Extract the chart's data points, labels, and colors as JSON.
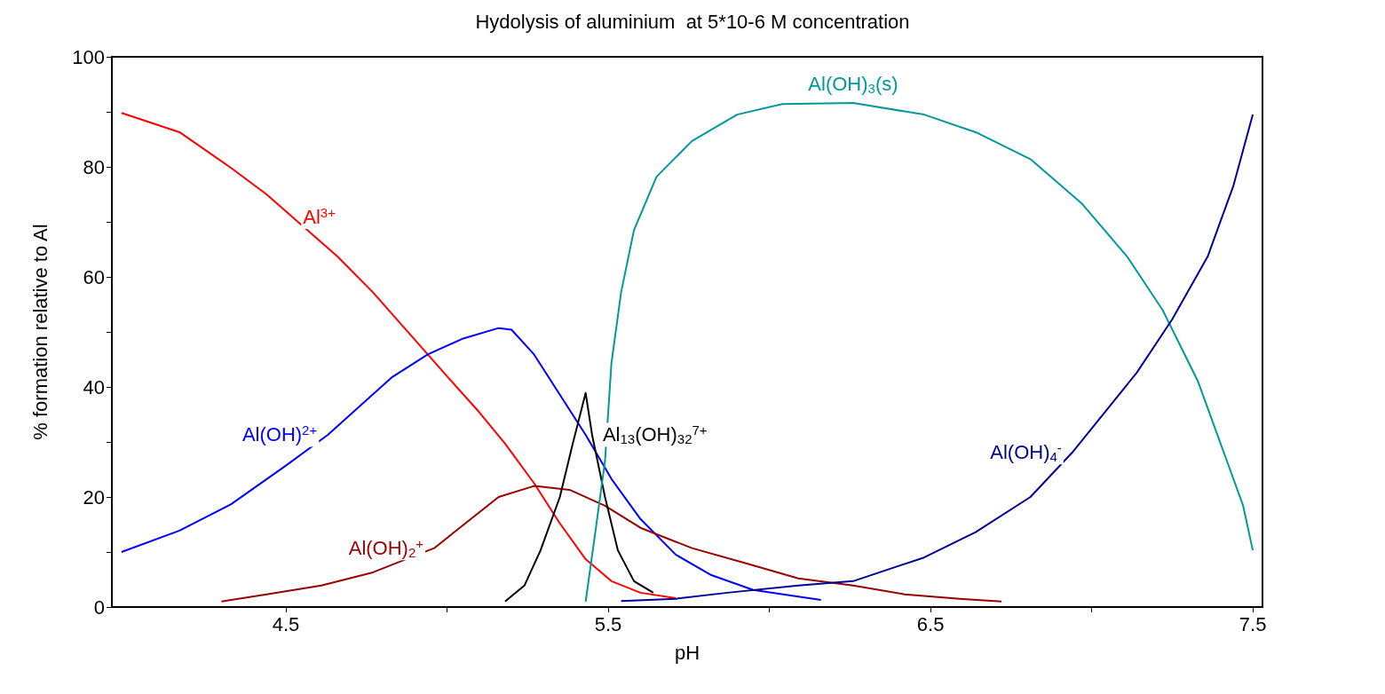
{
  "chart_data": {
    "type": "line",
    "title": "Hydolysis of aluminium  at 5*10-6 M concentration",
    "xlabel": "pH",
    "ylabel": "% formation relative to Al",
    "xlim": [
      3.96,
      7.53
    ],
    "xticks": [
      4.5,
      {
        "value": 5,
        "label": null
      },
      5.5,
      {
        "value": 6,
        "label": null
      },
      6.5,
      {
        "value": 7,
        "label": null
      },
      7.5
    ],
    "ylim": [
      0,
      100
    ],
    "yticks": [
      0,
      {
        "value": 10,
        "label": null
      },
      20,
      {
        "value": 30,
        "label": null
      },
      40,
      {
        "value": 50,
        "label": null
      },
      60,
      {
        "value": 70,
        "label": null
      },
      80,
      {
        "value": 90,
        "label": null
      },
      100
    ],
    "grid": false,
    "marker": "none",
    "line_style": "solid",
    "series": [
      {
        "color": "#ff0000",
        "x": [
          3.99,
          4.17,
          4.33,
          4.44,
          4.52,
          4.66,
          4.77,
          4.88,
          4.99,
          5.1,
          5.18,
          5.27,
          5.35,
          5.43,
          5.51,
          5.6,
          5.71
        ],
        "values": [
          89.8,
          86.3,
          79.8,
          75,
          70.9,
          63.7,
          57.2,
          49.9,
          42.6,
          35.4,
          29.7,
          22.5,
          15.2,
          8.7,
          4.7,
          2.6,
          1.6
        ]
      },
      {
        "color": "#0000ff",
        "x": [
          3.99,
          4.17,
          4.33,
          4.5,
          4.63,
          4.83,
          4.94,
          5.05,
          5.16,
          5.2,
          5.27,
          5.35,
          5.43,
          5.51,
          5.6,
          5.71,
          5.82,
          5.95,
          6.09,
          6.16
        ],
        "values": [
          10,
          13.9,
          18.7,
          25.7,
          31.3,
          41.8,
          45.9,
          48.8,
          50.7,
          50.4,
          45.9,
          38.6,
          31.3,
          23.3,
          16,
          9.5,
          5.8,
          3.1,
          1.9,
          1.3
        ]
      },
      {
        "color": "#990000",
        "x": [
          4.3,
          4.44,
          4.61,
          4.77,
          4.96,
          5.16,
          5.27,
          5.38,
          5.49,
          5.6,
          5.76,
          5.93,
          6.09,
          6.26,
          6.42,
          6.59,
          6.72
        ],
        "values": [
          1,
          2.3,
          3.9,
          6.3,
          10.7,
          20,
          22,
          21.3,
          18.4,
          14.4,
          10.7,
          7.9,
          5.2,
          3.9,
          2.3,
          1.5,
          1
        ]
      },
      {
        "color": "#000000",
        "x": [
          5.18,
          5.24,
          5.29,
          5.35,
          5.39,
          5.43,
          5.45,
          5.49,
          5.53,
          5.58,
          5.64
        ],
        "values": [
          1,
          3.9,
          10.3,
          20,
          29.7,
          38.9,
          31.3,
          20,
          10.3,
          4.7,
          2.6
        ]
      },
      {
        "color": "#009999",
        "x": [
          5.43,
          5.46,
          5.49,
          5.51,
          5.54,
          5.58,
          5.65,
          5.76,
          5.9,
          6.04,
          6.26,
          6.48,
          6.64,
          6.81,
          6.97,
          7.11,
          7.22,
          7.33,
          7.41,
          7.47,
          7.5
        ],
        "values": [
          1,
          13.6,
          26.5,
          44.3,
          57.2,
          68.5,
          78.2,
          84.7,
          89.5,
          91.4,
          91.6,
          89.5,
          86.3,
          81.4,
          73.3,
          63.7,
          54,
          41,
          28.1,
          18.4,
          10.3
        ]
      },
      {
        "color": "#000099",
        "x": [
          5.54,
          5.71,
          5.87,
          6.09,
          6.26,
          6.48,
          6.64,
          6.81,
          6.94,
          7.14,
          7.25,
          7.36,
          7.44,
          7.5
        ],
        "values": [
          1.1,
          1.5,
          2.6,
          3.9,
          4.7,
          9,
          13.6,
          20,
          28.1,
          42.6,
          52.3,
          63.7,
          76.6,
          89.5
        ]
      }
    ],
    "annotations": [
      {
        "text": "Al$^{3+}$",
        "x": 4.52,
        "y": 70.9
      },
      {
        "text": "Al(OH)$^{2+}$",
        "x": 4.63,
        "y": 31.3
      },
      {
        "text": "Al(OH)$_{2}$$^{+}$",
        "x": 4.96,
        "y": 10.7
      },
      {
        "text": "Al$_{13}$(OH)$_{32}$$^{7+}$",
        "x": 5.45,
        "y": 31.3
      },
      {
        "text": "Al(OH)$_{3}$(s)",
        "x": 6.26,
        "y": 91.6
      },
      {
        "text": "Al(OH)$_{4}$$^{-}$",
        "x": 6.94,
        "y": 28.1
      }
    ]
  }
}
